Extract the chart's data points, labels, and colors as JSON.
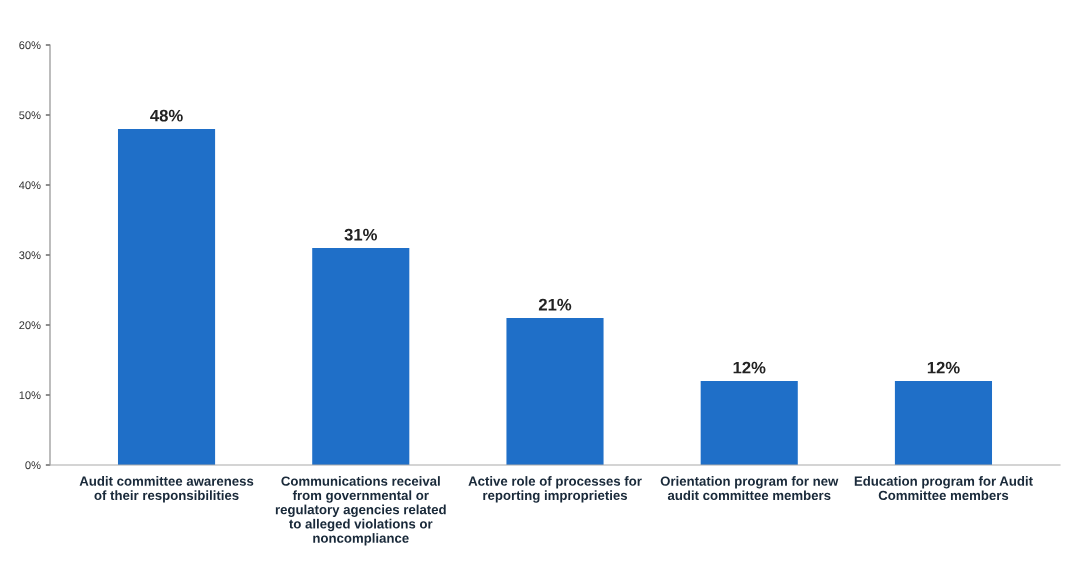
{
  "chart_data": {
    "type": "bar",
    "categories": [
      "Audit committee awareness\nof their responsibilities",
      "Communications receival\nfrom governmental or\nregulatory agencies related\nto alleged violations or\nnoncompliance",
      "Active role of processes for\nreporting improprieties",
      "Orientation program for new\naudit committee members",
      "Education program for Audit\nCommittee members"
    ],
    "values": [
      48,
      31,
      21,
      12,
      12
    ],
    "value_labels": [
      "48%",
      "31%",
      "21%",
      "12%",
      "12%"
    ],
    "color": "#1f6fc8",
    "ylim": [
      0,
      60
    ],
    "yticks": [
      {
        "value": 0,
        "label": "0%"
      },
      {
        "value": 10,
        "label": "10%"
      },
      {
        "value": 20,
        "label": "20%"
      },
      {
        "value": 30,
        "label": "30%"
      },
      {
        "value": 40,
        "label": "40%"
      },
      {
        "value": 50,
        "label": "50%"
      },
      {
        "value": 60,
        "label": "60%"
      }
    ],
    "grid": false,
    "legend": false
  }
}
